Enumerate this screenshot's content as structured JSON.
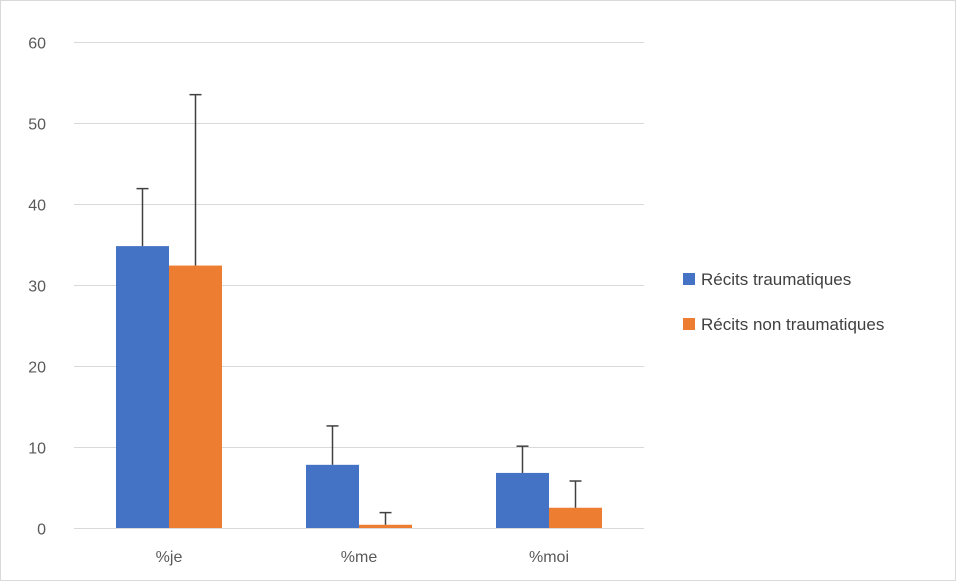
{
  "chart_data": {
    "type": "bar",
    "categories": [
      "%je",
      "%me",
      "%moi"
    ],
    "series": [
      {
        "name": "Récits traumatiques",
        "color": "#4472c4",
        "values": [
          34.8,
          7.8,
          6.8
        ],
        "error_plus": [
          7.1,
          4.8,
          3.3
        ]
      },
      {
        "name": "Récits non traumatiques",
        "color": "#ed7d31",
        "values": [
          32.4,
          0.4,
          2.5
        ],
        "error_plus": [
          21.1,
          1.5,
          3.3
        ]
      }
    ],
    "ylim": [
      0,
      60
    ],
    "yticks": [
      0,
      10,
      20,
      30,
      40,
      50,
      60
    ],
    "grid": true,
    "legend_position": "right",
    "error_bar_color": "#404040",
    "gridline_color": "#d9d9d9"
  }
}
